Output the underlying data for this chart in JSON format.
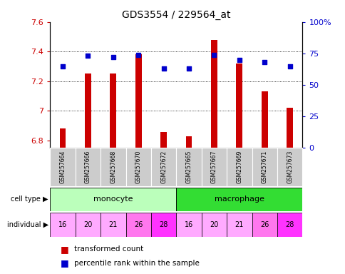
{
  "title": "GDS3554 / 229564_at",
  "samples": [
    "GSM257664",
    "GSM257666",
    "GSM257668",
    "GSM257670",
    "GSM257672",
    "GSM257665",
    "GSM257667",
    "GSM257669",
    "GSM257671",
    "GSM257673"
  ],
  "transformed_counts": [
    6.88,
    7.25,
    7.25,
    7.38,
    6.86,
    6.83,
    7.48,
    7.32,
    7.13,
    7.02
  ],
  "percentile_ranks": [
    65,
    73,
    72,
    74,
    63,
    63,
    74,
    70,
    68,
    65
  ],
  "cell_types": [
    "monocyte",
    "monocyte",
    "monocyte",
    "monocyte",
    "monocyte",
    "macrophage",
    "macrophage",
    "macrophage",
    "macrophage",
    "macrophage"
  ],
  "individuals": [
    "16",
    "20",
    "21",
    "26",
    "28",
    "16",
    "20",
    "21",
    "26",
    "28"
  ],
  "ylim_left": [
    6.75,
    7.6
  ],
  "ylim_right": [
    0,
    100
  ],
  "yticks_left": [
    6.8,
    7.0,
    7.2,
    7.4,
    7.6
  ],
  "ytick_labels_left": [
    "6.8",
    "7",
    "7.2",
    "7.4",
    "7.6"
  ],
  "yticks_right": [
    0,
    25,
    50,
    75,
    100
  ],
  "ytick_labels_right": [
    "0",
    "25",
    "50",
    "75",
    "100%"
  ],
  "bar_color": "#cc0000",
  "dot_color": "#0000cc",
  "monocyte_color": "#bbffbb",
  "macrophage_color": "#33dd33",
  "sample_label_bg": "#cccccc",
  "indiv_colors": {
    "16": "#ffaaff",
    "20": "#ffaaff",
    "21": "#ffaaff",
    "26": "#ff77ee",
    "28": "#ff33ff"
  },
  "legend_bar_label": "transformed count",
  "legend_dot_label": "percentile rank within the sample",
  "cell_type_label": "cell type",
  "individual_label": "individual"
}
